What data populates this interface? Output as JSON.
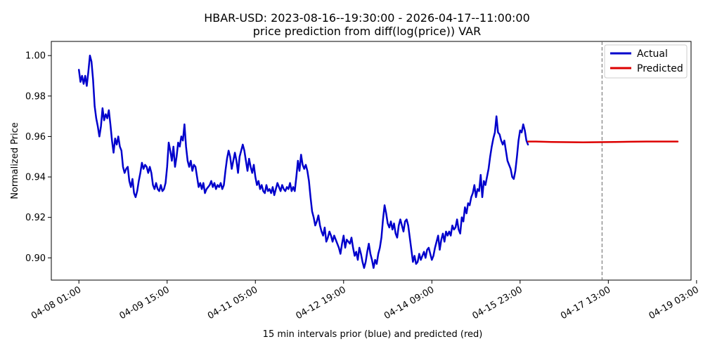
{
  "chart_data": {
    "type": "line",
    "title": "HBAR-USD: 2023-08-16--19:30:00 - 2026-04-17--11:00:00",
    "subtitle": "price prediction from diff(log(price)) VAR",
    "xlabel": "15 min intervals prior (blue) and predicted (red)",
    "ylabel": "Normalized Price",
    "ylim": [
      0.889,
      1.007
    ],
    "xlim": [
      -35,
      777
    ],
    "y_ticks": [
      0.9,
      0.92,
      0.94,
      0.96,
      0.98,
      1.0
    ],
    "y_tick_labels": [
      "0.90",
      "0.92",
      "0.94",
      "0.96",
      "0.98",
      "1.00"
    ],
    "x_ticks": [
      0,
      112,
      224,
      336,
      448,
      560,
      672,
      784
    ],
    "x_tick_labels": [
      "04-08 01:00",
      "04-09 15:00",
      "04-11 05:00",
      "04-12 19:00",
      "04-14 09:00",
      "04-15 23:00",
      "04-17 13:00",
      "04-19 03:00"
    ],
    "vline_x": 664,
    "grid": false,
    "legend_position": "top-right",
    "colors": {
      "actual": "#0000cc",
      "predicted": "#dd0000",
      "vline": "#666666"
    },
    "series": [
      {
        "name": "Actual",
        "points": [
          [
            0,
            0.993
          ],
          [
            2,
            0.987
          ],
          [
            4,
            0.99
          ],
          [
            6,
            0.986
          ],
          [
            8,
            0.99
          ],
          [
            10,
            0.985
          ],
          [
            12,
            0.992
          ],
          [
            14,
            1.0
          ],
          [
            16,
            0.997
          ],
          [
            18,
            0.988
          ],
          [
            20,
            0.975
          ],
          [
            22,
            0.969
          ],
          [
            24,
            0.965
          ],
          [
            26,
            0.96
          ],
          [
            28,
            0.965
          ],
          [
            30,
            0.974
          ],
          [
            32,
            0.968
          ],
          [
            34,
            0.971
          ],
          [
            36,
            0.969
          ],
          [
            38,
            0.973
          ],
          [
            40,
            0.966
          ],
          [
            42,
            0.958
          ],
          [
            44,
            0.952
          ],
          [
            46,
            0.959
          ],
          [
            48,
            0.956
          ],
          [
            50,
            0.96
          ],
          [
            52,
            0.955
          ],
          [
            54,
            0.953
          ],
          [
            56,
            0.945
          ],
          [
            58,
            0.942
          ],
          [
            60,
            0.944
          ],
          [
            62,
            0.945
          ],
          [
            64,
            0.938
          ],
          [
            66,
            0.935
          ],
          [
            68,
            0.939
          ],
          [
            70,
            0.932
          ],
          [
            72,
            0.93
          ],
          [
            74,
            0.933
          ],
          [
            76,
            0.938
          ],
          [
            78,
            0.942
          ],
          [
            80,
            0.947
          ],
          [
            82,
            0.944
          ],
          [
            84,
            0.946
          ],
          [
            86,
            0.945
          ],
          [
            88,
            0.942
          ],
          [
            90,
            0.945
          ],
          [
            92,
            0.942
          ],
          [
            94,
            0.936
          ],
          [
            96,
            0.934
          ],
          [
            98,
            0.937
          ],
          [
            100,
            0.934
          ],
          [
            102,
            0.933
          ],
          [
            104,
            0.936
          ],
          [
            106,
            0.933
          ],
          [
            108,
            0.934
          ],
          [
            110,
            0.937
          ],
          [
            112,
            0.945
          ],
          [
            114,
            0.957
          ],
          [
            116,
            0.953
          ],
          [
            118,
            0.948
          ],
          [
            120,
            0.955
          ],
          [
            122,
            0.945
          ],
          [
            124,
            0.95
          ],
          [
            126,
            0.957
          ],
          [
            128,
            0.955
          ],
          [
            130,
            0.96
          ],
          [
            132,
            0.958
          ],
          [
            134,
            0.966
          ],
          [
            136,
            0.955
          ],
          [
            138,
            0.948
          ],
          [
            140,
            0.945
          ],
          [
            142,
            0.948
          ],
          [
            144,
            0.943
          ],
          [
            146,
            0.946
          ],
          [
            148,
            0.945
          ],
          [
            150,
            0.94
          ],
          [
            152,
            0.935
          ],
          [
            154,
            0.937
          ],
          [
            156,
            0.934
          ],
          [
            158,
            0.937
          ],
          [
            160,
            0.932
          ],
          [
            162,
            0.934
          ],
          [
            164,
            0.935
          ],
          [
            166,
            0.936
          ],
          [
            168,
            0.938
          ],
          [
            170,
            0.935
          ],
          [
            172,
            0.937
          ],
          [
            174,
            0.934
          ],
          [
            176,
            0.936
          ],
          [
            178,
            0.935
          ],
          [
            180,
            0.937
          ],
          [
            182,
            0.934
          ],
          [
            184,
            0.936
          ],
          [
            186,
            0.943
          ],
          [
            188,
            0.949
          ],
          [
            190,
            0.953
          ],
          [
            192,
            0.95
          ],
          [
            194,
            0.944
          ],
          [
            196,
            0.948
          ],
          [
            198,
            0.952
          ],
          [
            200,
            0.948
          ],
          [
            202,
            0.942
          ],
          [
            204,
            0.95
          ],
          [
            206,
            0.953
          ],
          [
            208,
            0.956
          ],
          [
            210,
            0.953
          ],
          [
            212,
            0.948
          ],
          [
            214,
            0.943
          ],
          [
            216,
            0.949
          ],
          [
            218,
            0.945
          ],
          [
            220,
            0.942
          ],
          [
            222,
            0.946
          ],
          [
            224,
            0.94
          ],
          [
            226,
            0.936
          ],
          [
            228,
            0.938
          ],
          [
            230,
            0.934
          ],
          [
            232,
            0.936
          ],
          [
            234,
            0.933
          ],
          [
            236,
            0.932
          ],
          [
            238,
            0.936
          ],
          [
            240,
            0.933
          ],
          [
            242,
            0.934
          ],
          [
            244,
            0.932
          ],
          [
            246,
            0.935
          ],
          [
            248,
            0.931
          ],
          [
            250,
            0.934
          ],
          [
            252,
            0.937
          ],
          [
            254,
            0.935
          ],
          [
            256,
            0.933
          ],
          [
            258,
            0.936
          ],
          [
            260,
            0.934
          ],
          [
            262,
            0.933
          ],
          [
            264,
            0.935
          ],
          [
            266,
            0.934
          ],
          [
            268,
            0.937
          ],
          [
            270,
            0.933
          ],
          [
            272,
            0.935
          ],
          [
            274,
            0.933
          ],
          [
            276,
            0.94
          ],
          [
            278,
            0.948
          ],
          [
            280,
            0.943
          ],
          [
            282,
            0.951
          ],
          [
            284,
            0.946
          ],
          [
            286,
            0.944
          ],
          [
            288,
            0.946
          ],
          [
            290,
            0.943
          ],
          [
            292,
            0.938
          ],
          [
            294,
            0.93
          ],
          [
            296,
            0.923
          ],
          [
            298,
            0.92
          ],
          [
            300,
            0.916
          ],
          [
            302,
            0.918
          ],
          [
            304,
            0.921
          ],
          [
            306,
            0.916
          ],
          [
            308,
            0.913
          ],
          [
            310,
            0.911
          ],
          [
            312,
            0.915
          ],
          [
            314,
            0.908
          ],
          [
            316,
            0.91
          ],
          [
            318,
            0.913
          ],
          [
            320,
            0.911
          ],
          [
            322,
            0.908
          ],
          [
            324,
            0.911
          ],
          [
            326,
            0.909
          ],
          [
            328,
            0.907
          ],
          [
            330,
            0.905
          ],
          [
            332,
            0.902
          ],
          [
            334,
            0.907
          ],
          [
            336,
            0.911
          ],
          [
            338,
            0.905
          ],
          [
            340,
            0.909
          ],
          [
            342,
            0.908
          ],
          [
            344,
            0.907
          ],
          [
            346,
            0.91
          ],
          [
            348,
            0.905
          ],
          [
            350,
            0.901
          ],
          [
            352,
            0.903
          ],
          [
            354,
            0.899
          ],
          [
            356,
            0.905
          ],
          [
            358,
            0.902
          ],
          [
            360,
            0.898
          ],
          [
            362,
            0.895
          ],
          [
            364,
            0.898
          ],
          [
            366,
            0.903
          ],
          [
            368,
            0.907
          ],
          [
            370,
            0.902
          ],
          [
            372,
            0.899
          ],
          [
            374,
            0.895
          ],
          [
            376,
            0.899
          ],
          [
            378,
            0.897
          ],
          [
            380,
            0.902
          ],
          [
            382,
            0.905
          ],
          [
            384,
            0.91
          ],
          [
            386,
            0.919
          ],
          [
            388,
            0.926
          ],
          [
            390,
            0.922
          ],
          [
            392,
            0.917
          ],
          [
            394,
            0.915
          ],
          [
            396,
            0.918
          ],
          [
            398,
            0.914
          ],
          [
            400,
            0.917
          ],
          [
            402,
            0.912
          ],
          [
            404,
            0.91
          ],
          [
            406,
            0.916
          ],
          [
            408,
            0.919
          ],
          [
            410,
            0.916
          ],
          [
            412,
            0.913
          ],
          [
            414,
            0.918
          ],
          [
            416,
            0.919
          ],
          [
            418,
            0.916
          ],
          [
            420,
            0.91
          ],
          [
            422,
            0.904
          ],
          [
            424,
            0.898
          ],
          [
            426,
            0.901
          ],
          [
            428,
            0.897
          ],
          [
            430,
            0.898
          ],
          [
            432,
            0.902
          ],
          [
            434,
            0.899
          ],
          [
            436,
            0.901
          ],
          [
            438,
            0.903
          ],
          [
            440,
            0.9
          ],
          [
            442,
            0.904
          ],
          [
            444,
            0.905
          ],
          [
            446,
            0.902
          ],
          [
            448,
            0.899
          ],
          [
            450,
            0.901
          ],
          [
            452,
            0.905
          ],
          [
            454,
            0.908
          ],
          [
            456,
            0.911
          ],
          [
            458,
            0.904
          ],
          [
            460,
            0.909
          ],
          [
            462,
            0.912
          ],
          [
            464,
            0.908
          ],
          [
            466,
            0.913
          ],
          [
            468,
            0.911
          ],
          [
            470,
            0.913
          ],
          [
            472,
            0.911
          ],
          [
            474,
            0.916
          ],
          [
            476,
            0.914
          ],
          [
            478,
            0.915
          ],
          [
            480,
            0.919
          ],
          [
            482,
            0.914
          ],
          [
            484,
            0.912
          ],
          [
            486,
            0.92
          ],
          [
            488,
            0.918
          ],
          [
            490,
            0.925
          ],
          [
            492,
            0.922
          ],
          [
            494,
            0.927
          ],
          [
            496,
            0.926
          ],
          [
            498,
            0.93
          ],
          [
            500,
            0.932
          ],
          [
            502,
            0.936
          ],
          [
            504,
            0.93
          ],
          [
            506,
            0.934
          ],
          [
            508,
            0.933
          ],
          [
            510,
            0.941
          ],
          [
            512,
            0.93
          ],
          [
            514,
            0.938
          ],
          [
            516,
            0.936
          ],
          [
            518,
            0.94
          ],
          [
            520,
            0.944
          ],
          [
            522,
            0.95
          ],
          [
            524,
            0.955
          ],
          [
            526,
            0.959
          ],
          [
            528,
            0.962
          ],
          [
            530,
            0.97
          ],
          [
            532,
            0.962
          ],
          [
            534,
            0.961
          ],
          [
            536,
            0.958
          ],
          [
            538,
            0.956
          ],
          [
            540,
            0.958
          ],
          [
            542,
            0.953
          ],
          [
            544,
            0.948
          ],
          [
            546,
            0.946
          ],
          [
            548,
            0.944
          ],
          [
            550,
            0.94
          ],
          [
            552,
            0.939
          ],
          [
            554,
            0.943
          ],
          [
            556,
            0.95
          ],
          [
            558,
            0.958
          ],
          [
            560,
            0.963
          ],
          [
            562,
            0.962
          ],
          [
            564,
            0.966
          ],
          [
            566,
            0.963
          ],
          [
            568,
            0.958
          ],
          [
            570,
            0.956
          ]
        ]
      },
      {
        "name": "Predicted",
        "points": [
          [
            570,
            0.9575
          ],
          [
            580,
            0.9575
          ],
          [
            600,
            0.9573
          ],
          [
            620,
            0.9572
          ],
          [
            640,
            0.9571
          ],
          [
            660,
            0.9572
          ],
          [
            680,
            0.9573
          ],
          [
            700,
            0.9574
          ],
          [
            720,
            0.9575
          ],
          [
            740,
            0.9575
          ],
          [
            760,
            0.9575
          ]
        ]
      }
    ]
  }
}
